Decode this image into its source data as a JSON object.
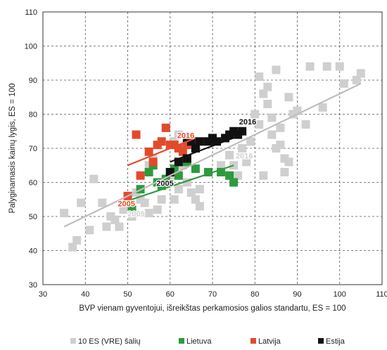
{
  "chart_data": {
    "type": "scatter",
    "xlabel": "BVP vienam gyventojui, išreikštas perkamosios galios standartu, ES = 100",
    "ylabel": "Palyginamasis kainų lygis, ES = 100",
    "xlim": [
      30,
      110
    ],
    "ylim": [
      30,
      110
    ],
    "xticks": [
      30,
      40,
      50,
      60,
      70,
      80,
      90,
      100,
      110
    ],
    "yticks": [
      30,
      40,
      50,
      60,
      70,
      80,
      90,
      100,
      110
    ],
    "grid": "dashed",
    "legend_position": "bottom",
    "series": [
      {
        "name": "10 ES (VRE) šalių",
        "color": "#cfcfcf",
        "values": [
          [
            35,
            51
          ],
          [
            37,
            41
          ],
          [
            38,
            43
          ],
          [
            39,
            54
          ],
          [
            41,
            46
          ],
          [
            42,
            61
          ],
          [
            44,
            54
          ],
          [
            45,
            47
          ],
          [
            46,
            50
          ],
          [
            47,
            49
          ],
          [
            48,
            47
          ],
          [
            49,
            52
          ],
          [
            50,
            53
          ],
          [
            51,
            50
          ],
          [
            52,
            57
          ],
          [
            53,
            55
          ],
          [
            54,
            54
          ],
          [
            55,
            65
          ],
          [
            55,
            51
          ],
          [
            56,
            67
          ],
          [
            57,
            52
          ],
          [
            58,
            55
          ],
          [
            59,
            60
          ],
          [
            60,
            61
          ],
          [
            61,
            55
          ],
          [
            61,
            72
          ],
          [
            62,
            58
          ],
          [
            62,
            74
          ],
          [
            63,
            65
          ],
          [
            64,
            60
          ],
          [
            65,
            57
          ],
          [
            66,
            55
          ],
          [
            67,
            58
          ],
          [
            67,
            53
          ],
          [
            72,
            65
          ],
          [
            73,
            73
          ],
          [
            74,
            68
          ],
          [
            75,
            65
          ],
          [
            76,
            62
          ],
          [
            77,
            70
          ],
          [
            78,
            66
          ],
          [
            79,
            72
          ],
          [
            80,
            80
          ],
          [
            81,
            91
          ],
          [
            81,
            77
          ],
          [
            82,
            86
          ],
          [
            82,
            62
          ],
          [
            83,
            88
          ],
          [
            83,
            83
          ],
          [
            84,
            79
          ],
          [
            84,
            74
          ],
          [
            85,
            93
          ],
          [
            85,
            70
          ],
          [
            86,
            76
          ],
          [
            86,
            71
          ],
          [
            87,
            67
          ],
          [
            87,
            63
          ],
          [
            88,
            85
          ],
          [
            88,
            66
          ],
          [
            89,
            80
          ],
          [
            90,
            81
          ],
          [
            92,
            77
          ],
          [
            93,
            94
          ],
          [
            96,
            82
          ],
          [
            97,
            94
          ],
          [
            100,
            94
          ],
          [
            101,
            89
          ],
          [
            104,
            90
          ],
          [
            105,
            92
          ]
        ]
      },
      {
        "name": "Lietuva",
        "color": "#2e9a3e",
        "values": [
          [
            51,
            52
          ],
          [
            53,
            58
          ],
          [
            55,
            63
          ],
          [
            56,
            65
          ],
          [
            57,
            60
          ],
          [
            58,
            59
          ],
          [
            59,
            61
          ],
          [
            60,
            63
          ],
          [
            61,
            64
          ],
          [
            62,
            62
          ],
          [
            64,
            66
          ],
          [
            66,
            64
          ],
          [
            69,
            63
          ],
          [
            72,
            63
          ],
          [
            74,
            62
          ],
          [
            75,
            60
          ]
        ]
      },
      {
        "name": "Latvija",
        "color": "#e34a2c",
        "values": [
          [
            50,
            56
          ],
          [
            52,
            74
          ],
          [
            53,
            62
          ],
          [
            55,
            69
          ],
          [
            56,
            66
          ],
          [
            57,
            71
          ],
          [
            58,
            72
          ],
          [
            59,
            76
          ],
          [
            60,
            71
          ],
          [
            61,
            71
          ],
          [
            62,
            70
          ],
          [
            63,
            69
          ],
          [
            64,
            71
          ],
          [
            66,
            70
          ]
        ]
      },
      {
        "name": "Estija",
        "color": "#111111",
        "values": [
          [
            60,
            63
          ],
          [
            62,
            66
          ],
          [
            64,
            67
          ],
          [
            64,
            73
          ],
          [
            65,
            72
          ],
          [
            66,
            70
          ],
          [
            67,
            72
          ],
          [
            69,
            72
          ],
          [
            70,
            73
          ],
          [
            71,
            72
          ],
          [
            73,
            73
          ],
          [
            74,
            74
          ],
          [
            75,
            75
          ],
          [
            76,
            74
          ],
          [
            77,
            75
          ]
        ]
      }
    ],
    "trendlines": [
      {
        "series": "10 ES (VRE) šalių",
        "color": "#bdbdbd",
        "from": [
          35,
          47
        ],
        "to": [
          105,
          89
        ]
      },
      {
        "series": "Latvija",
        "color": "#e34a2c",
        "from": [
          50,
          65
        ],
        "to": [
          66,
          73
        ]
      },
      {
        "series": "Lietuva",
        "color": "#2e9a3e",
        "from": [
          51,
          55
        ],
        "to": [
          75,
          65
        ]
      },
      {
        "series": "Estija",
        "color": "#111111",
        "from": [
          60,
          66
        ],
        "to": [
          77,
          74
        ]
      }
    ],
    "annotations": [
      {
        "text": "2016",
        "x": 78.3,
        "y": 77,
        "color": "#111111"
      },
      {
        "text": "2016",
        "x": 63.7,
        "y": 73,
        "color": "#e34a2c"
      },
      {
        "text": "2016",
        "x": 77.5,
        "y": 67,
        "color": "#cfcfcf"
      },
      {
        "text": "2005",
        "x": 58.8,
        "y": 59,
        "color": "#111111"
      },
      {
        "text": "2005",
        "x": 49.7,
        "y": 53,
        "color": "#e34a2c"
      },
      {
        "text": "2005",
        "x": 52,
        "y": 50,
        "color": "#cfcfcf"
      }
    ]
  }
}
